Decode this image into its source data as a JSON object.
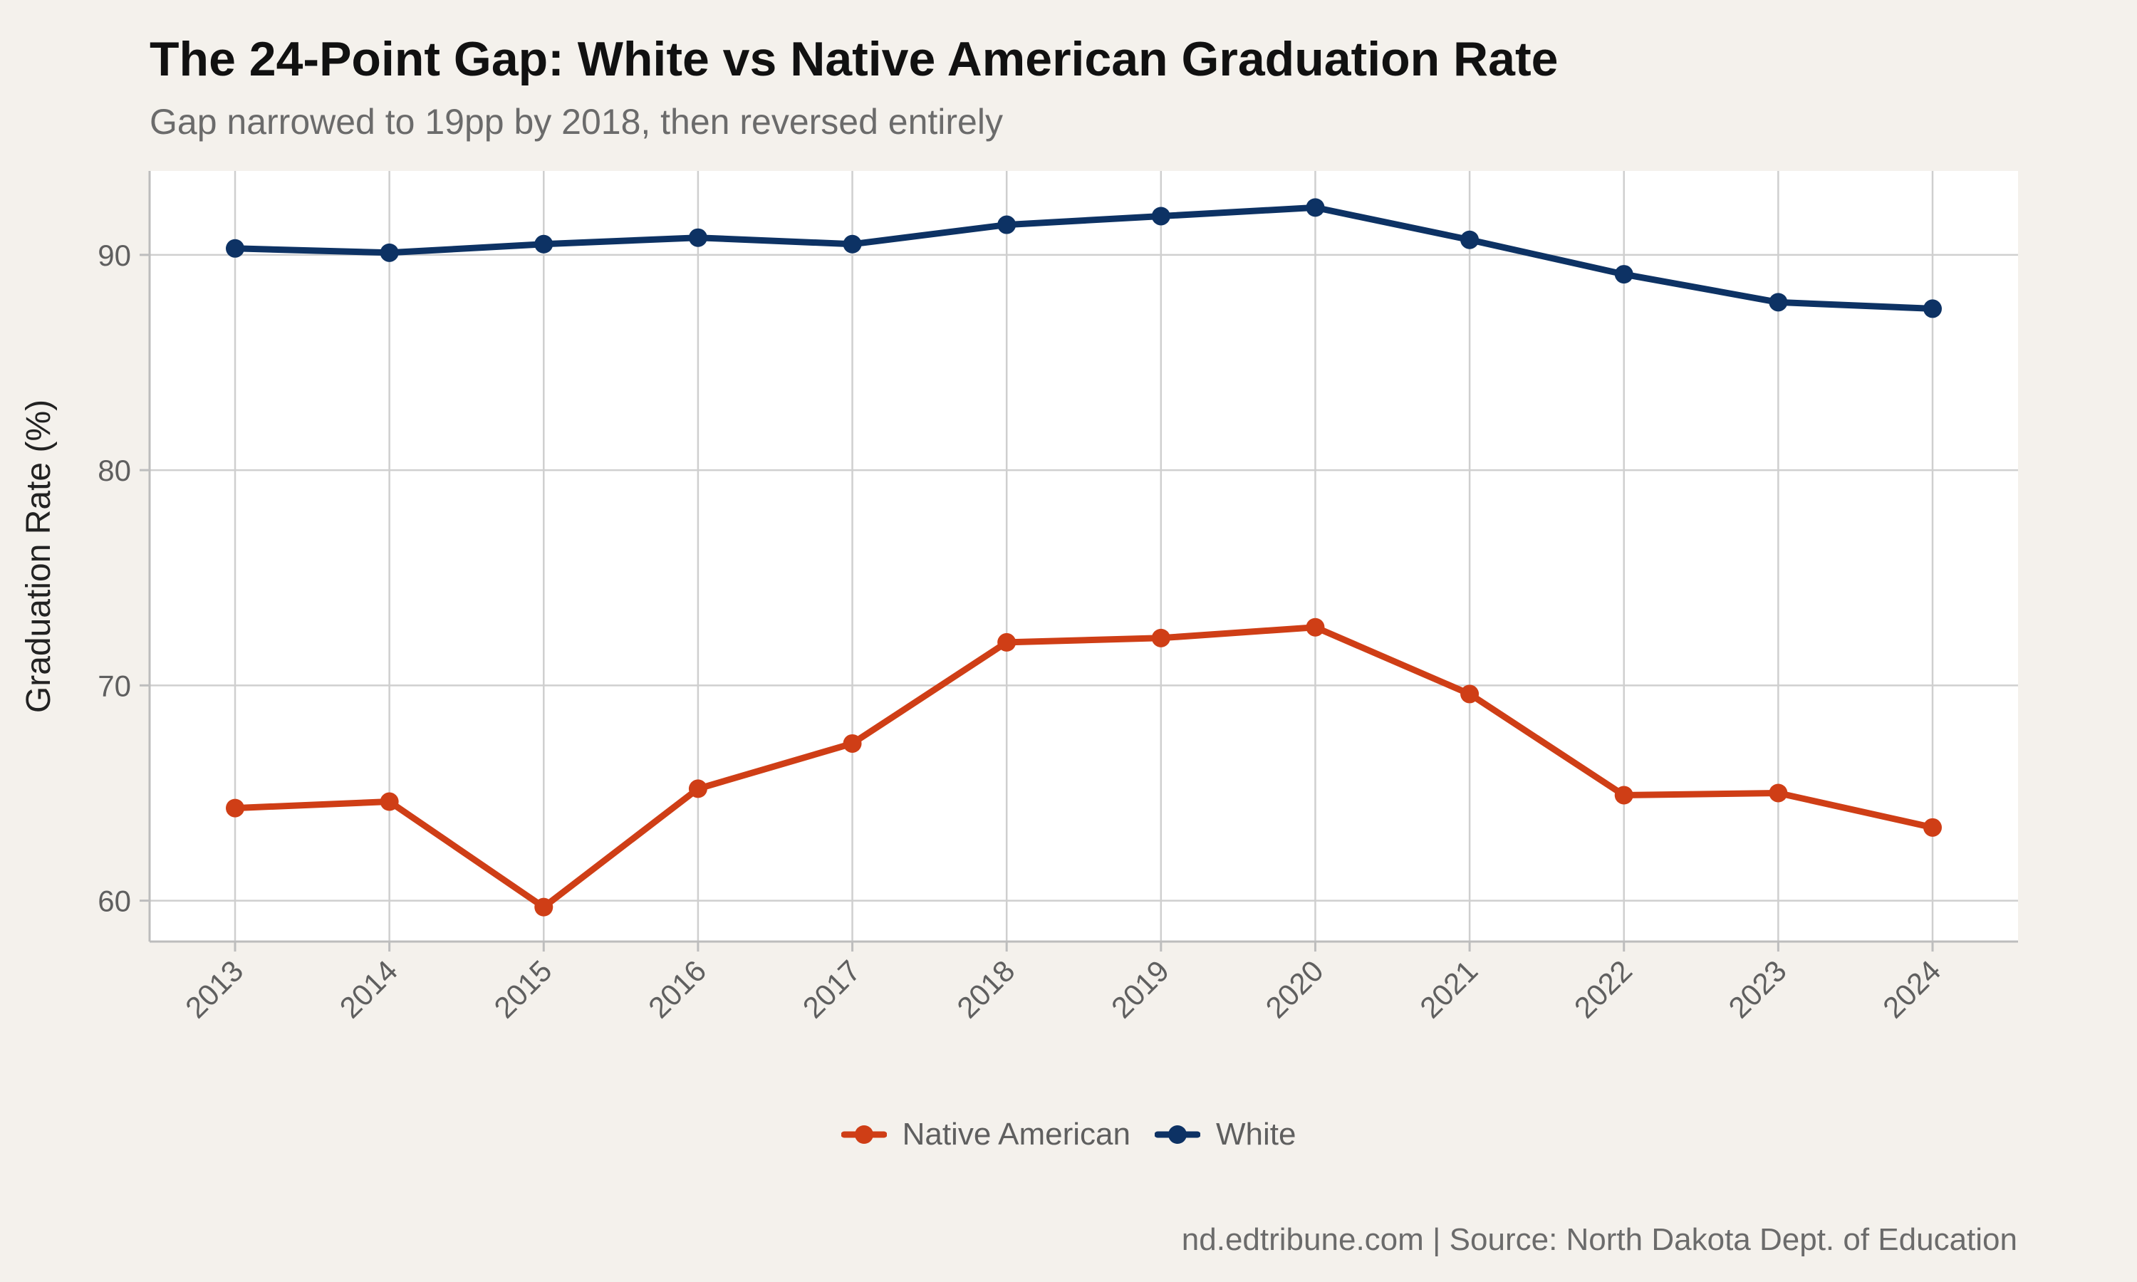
{
  "title": "The 24-Point Gap: White vs Native American Graduation Rate",
  "subtitle": "Gap narrowed to 19pp by 2018, then reversed entirely",
  "caption": "nd.edtribune.com | Source: North Dakota Dept. of Education",
  "colors": {
    "background": "#f4f1ec",
    "panel": "#ffffff",
    "grid": "#cfcfcf",
    "native_american": "#cf3e16",
    "white": "#0d3264"
  },
  "chart_data": {
    "type": "line",
    "title": "The 24-Point Gap: White vs Native American Graduation Rate",
    "subtitle": "Gap narrowed to 19pp by 2018, then reversed entirely",
    "xlabel": "",
    "ylabel": "Graduation Rate (%)",
    "x": [
      "2013",
      "2014",
      "2015",
      "2016",
      "2017",
      "2018",
      "2019",
      "2020",
      "2021",
      "2022",
      "2023",
      "2024"
    ],
    "ylim": [
      58.1,
      93.9
    ],
    "yticks": [
      60,
      70,
      80,
      90
    ],
    "grid": true,
    "legend_position": "bottom",
    "series": [
      {
        "name": "Native American",
        "color": "#cf3e16",
        "values": [
          64.3,
          64.6,
          59.7,
          65.2,
          67.3,
          72.0,
          72.2,
          72.7,
          69.6,
          64.9,
          65.0,
          63.4
        ]
      },
      {
        "name": "White",
        "color": "#0d3264",
        "values": [
          90.3,
          90.1,
          90.5,
          90.8,
          90.5,
          91.4,
          91.8,
          92.2,
          90.7,
          89.1,
          87.8,
          87.5
        ]
      }
    ]
  }
}
